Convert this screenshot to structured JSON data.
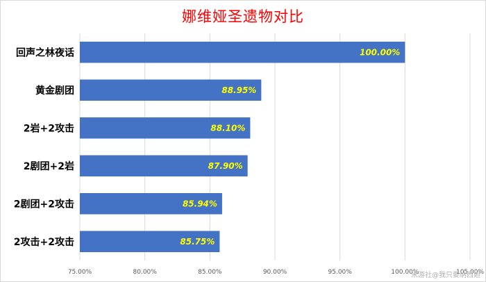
{
  "chart_data": {
    "type": "bar",
    "orientation": "horizontal",
    "title": "娜维娅圣遗物对比",
    "categories": [
      "回声之林夜话",
      "黄金剧团",
      "2岩+2攻击",
      "2剧团+2岩",
      "2剧团+2攻击",
      "2攻击+2攻击"
    ],
    "values": [
      100.0,
      88.95,
      88.1,
      87.9,
      85.94,
      85.75
    ],
    "data_labels": [
      "100.00%",
      "88.95%",
      "88.10%",
      "87.90%",
      "85.94%",
      "85.75%"
    ],
    "xlim": [
      75,
      105
    ],
    "x_ticks": [
      75,
      80,
      85,
      90,
      95,
      100,
      105
    ],
    "x_tick_labels": [
      "75.00%",
      "80.00%",
      "85.00%",
      "90.00%",
      "95.00%",
      "100.00%",
      "105.00%"
    ],
    "grid": true,
    "bar_color": "#4472c4",
    "label_color": "#ffff00",
    "title_color": "#ff0000"
  },
  "watermark": "米游社@我只要纳西妲"
}
